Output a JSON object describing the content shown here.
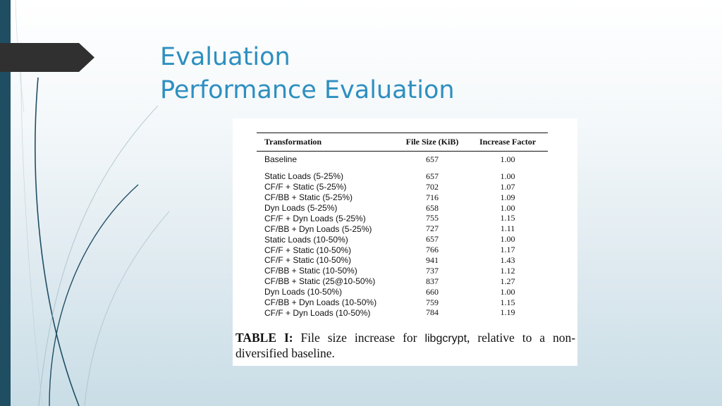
{
  "slide": {
    "title_line1": "Evaluation",
    "title_line2": "Performance Evaluation"
  },
  "table": {
    "headers": [
      "Transformation",
      "File Size (KiB)",
      "Increase Factor"
    ],
    "baseline": {
      "name": "Baseline",
      "size": "657",
      "factor": "1.00"
    },
    "rows": [
      {
        "name": "Static Loads (5-25%)",
        "size": "657",
        "factor": "1.00"
      },
      {
        "name": "CF/F + Static (5-25%)",
        "size": "702",
        "factor": "1.07"
      },
      {
        "name": "CF/BB + Static (5-25%)",
        "size": "716",
        "factor": "1.09"
      },
      {
        "name": "Dyn Loads (5-25%)",
        "size": "658",
        "factor": "1.00"
      },
      {
        "name": "CF/F + Dyn Loads (5-25%)",
        "size": "755",
        "factor": "1.15"
      },
      {
        "name": "CF/BB + Dyn Loads (5-25%)",
        "size": "727",
        "factor": "1.11"
      },
      {
        "name": "Static Loads (10-50%)",
        "size": "657",
        "factor": "1.00"
      },
      {
        "name": "CF/F + Static (10-50%)",
        "size": "766",
        "factor": "1.17"
      },
      {
        "name": "CF/F + Static (10-50%)",
        "size": "941",
        "factor": "1.43"
      },
      {
        "name": "CF/BB + Static (10-50%)",
        "size": "737",
        "factor": "1.12"
      },
      {
        "name": "CF/BB + Static (25@10-50%)",
        "size": "837",
        "factor": "1.27"
      },
      {
        "name": "Dyn Loads (10-50%)",
        "size": "660",
        "factor": "1.00"
      },
      {
        "name": "CF/BB + Dyn Loads (10-50%)",
        "size": "759",
        "factor": "1.15"
      },
      {
        "name": "CF/F + Dyn Loads (10-50%)",
        "size": "784",
        "factor": "1.19"
      }
    ]
  },
  "caption": {
    "label": "TABLE I:",
    "text_before": "File size increase for",
    "library": "libgcrypt",
    "text_after": ", relative to a non-diversified baseline."
  },
  "colors": {
    "title": "#2e8fc0",
    "left_bar": "#1f4e63",
    "pointer_tab": "#303030"
  }
}
